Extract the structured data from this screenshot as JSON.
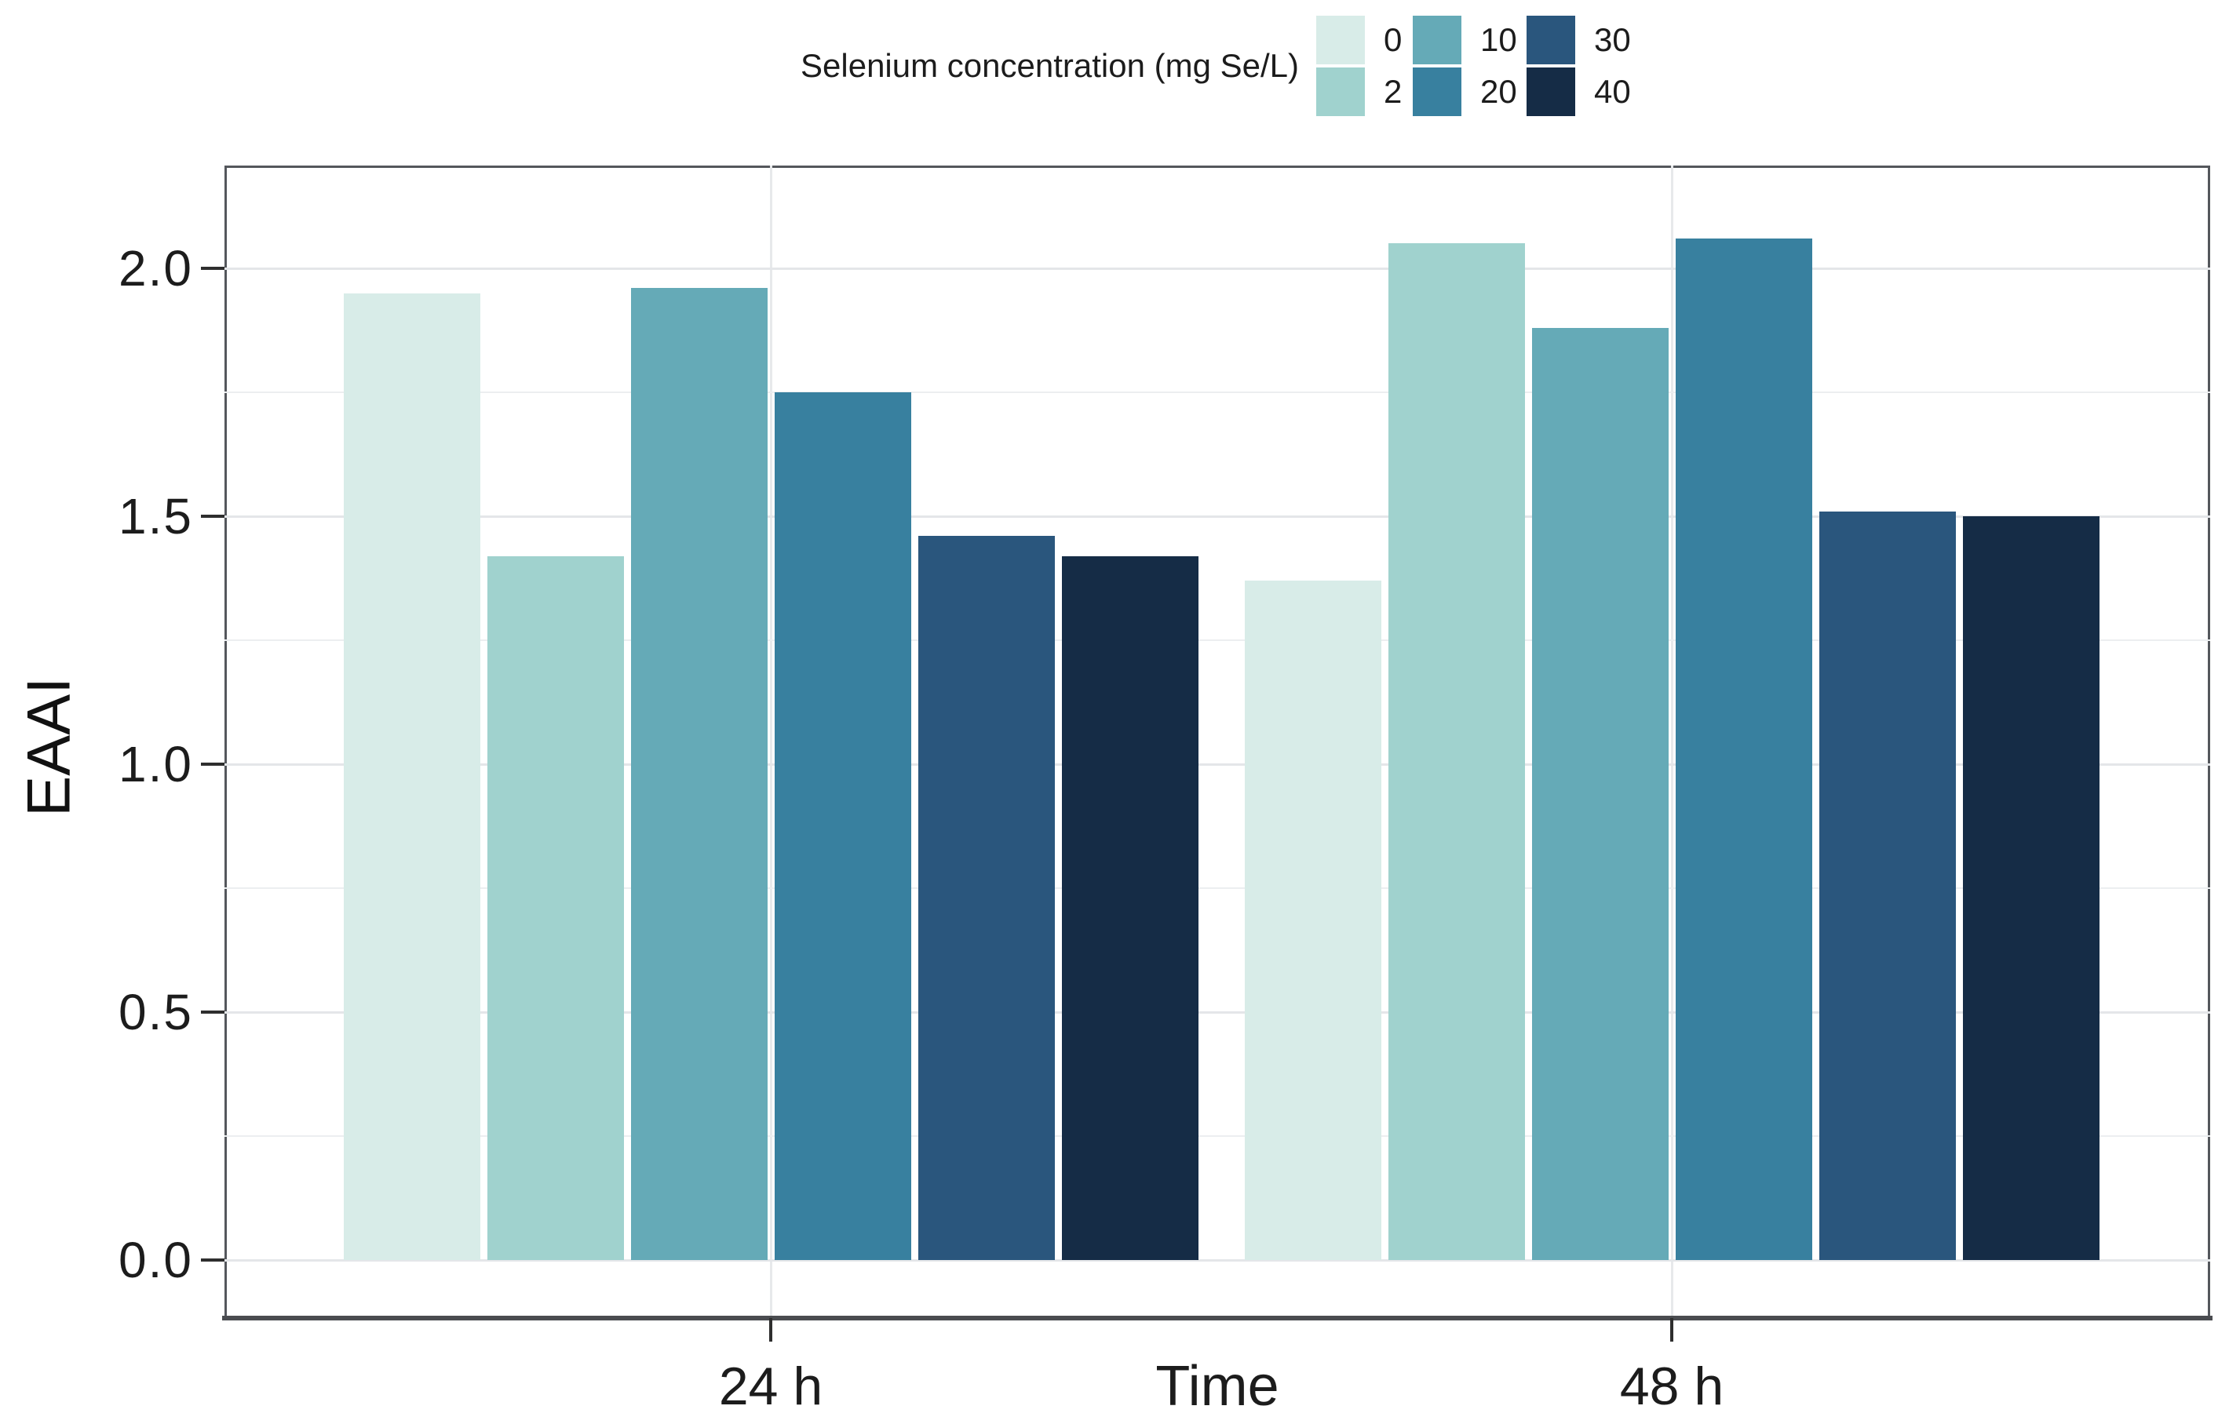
{
  "chart_data": {
    "type": "bar",
    "title": "",
    "xlabel": "Time",
    "ylabel": "EAAI",
    "categories": [
      "24 h",
      "48 h"
    ],
    "legend_title": "Selenium concentration (mg Se/L)",
    "legend_position": "top-center",
    "legend_layout": "3 columns x 2 rows, column-major",
    "grid": true,
    "ylim": [
      0,
      2.2
    ],
    "yticks": [
      0.0,
      0.5,
      1.0,
      1.5,
      2.0
    ],
    "ytick_labels": [
      "0.0",
      "0.5",
      "1.0",
      "1.5",
      "2.0"
    ],
    "minor_gridlines": [
      0.25,
      0.75,
      1.25,
      1.75
    ],
    "series": [
      {
        "name": "0",
        "color": "#d8ece8",
        "values": [
          1.95,
          1.37
        ]
      },
      {
        "name": "2",
        "color": "#a0d2ce",
        "values": [
          1.42,
          2.05
        ]
      },
      {
        "name": "10",
        "color": "#65aab7",
        "values": [
          1.96,
          1.88
        ]
      },
      {
        "name": "20",
        "color": "#38809f",
        "values": [
          1.75,
          2.06
        ]
      },
      {
        "name": "30",
        "color": "#2a567d",
        "values": [
          1.46,
          1.51
        ]
      },
      {
        "name": "40",
        "color": "#152c46",
        "values": [
          1.42,
          1.5
        ]
      }
    ]
  },
  "colors": {
    "panel_border": "#54575c",
    "axis_line": "#4a4c50",
    "major_grid": "#e4e6e9",
    "minor_grid": "#eceef0",
    "tick": "#2e2e2e",
    "text": "#1c1c1c",
    "background": "#ffffff"
  }
}
